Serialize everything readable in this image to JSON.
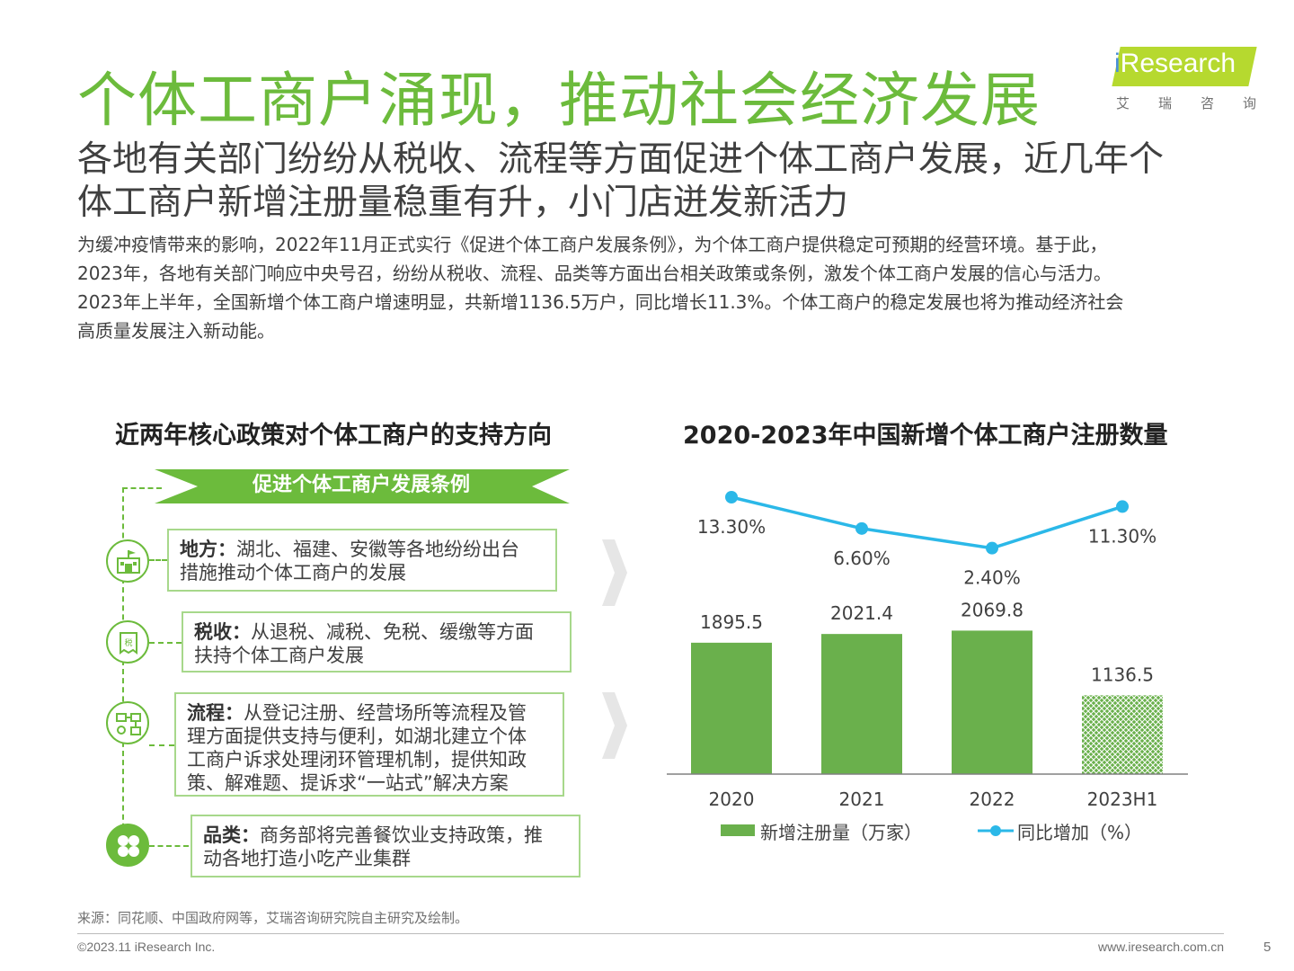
{
  "header": {
    "title": "个体工商户涌现，推动社会经济发展",
    "subtitle_lines": [
      "各地有关部门纷纷从税收、流程等方面促进个体工商户发展，近几年个",
      "体工商户新增注册量稳重有升，小门店迸发新活力"
    ],
    "logo": {
      "brand": "Research",
      "brand_prefix": "i",
      "sub": [
        "艾",
        "瑞",
        "咨",
        "询"
      ],
      "accent": "#b6d92f"
    }
  },
  "body_lines": [
    "为缓冲疫情带来的影响，2022年11月正式实行《促进个体工商户发展条例》，为个体工商户提供稳定可预期的经营环境。基于此，",
    "2023年，各地有关部门响应中央号召，纷纷从税收、流程、品类等方面出台相关政策或条例，激发个体工商户发展的信心与活力。",
    "2023年上半年，全国新增个体工商户增速明显，共新增1136.5万户，同比增长11.3%。个体工商户的稳定发展也将为推动经济社会",
    "高质量发展注入新动能。"
  ],
  "policy": {
    "heading": "近两年核心政策对个体工商户的支持方向",
    "banner": "促进个体工商户发展条例",
    "items": [
      {
        "icon": "government-building-icon",
        "label": "地方：",
        "text_lines": [
          "湖北、福建、安徽等各地纷纷出台",
          "措施推动个体工商户的发展"
        ]
      },
      {
        "icon": "tax-receipt-icon",
        "label": "税收：",
        "text_lines": [
          "从退税、减税、免税、缓缴等方面",
          "扶持个体工商户发展"
        ]
      },
      {
        "icon": "process-flow-icon",
        "label": "流程：",
        "text_lines": [
          "从登记注册、经营场所等流程及管",
          "理方面提供支持与便利，如湖北建立个体",
          "工商户诉求处理闭环管理机制，提供知政",
          "策、解难题、提诉求“一站式”解决方案"
        ]
      },
      {
        "icon": "category-grid-icon",
        "label": "品类：",
        "text_lines": [
          "商务部将完善餐饮业支持政策，推",
          "动各地打造小吃产业集群"
        ]
      }
    ]
  },
  "chart_data": {
    "type": "bar",
    "title": "2020-2023年中国新增个体工商户注册数量",
    "categories": [
      "2020",
      "2021",
      "2022",
      "2023H1"
    ],
    "series": [
      {
        "name": "新增注册量（万家）",
        "type": "bar",
        "values": [
          1895.5,
          2021.4,
          2069.8,
          1136.5
        ],
        "labels": [
          "1895.5",
          "2021.4",
          "2069.8",
          "1136.5"
        ],
        "color": "#6ab04c"
      },
      {
        "name": "同比增加（%）",
        "type": "line",
        "values": [
          13.3,
          6.6,
          2.4,
          11.3
        ],
        "labels": [
          "13.30%",
          "6.60%",
          "2.40%",
          "11.30%"
        ],
        "color": "#2bb8e8"
      }
    ],
    "legend_position": "bottom",
    "grid": false
  },
  "footer": {
    "source": "来源：同花顺、中国政府网等，艾瑞咨询研究院自主研究及绘制。",
    "copyright": "©2023.11 iResearch Inc.",
    "website": "www.iresearch.com.cn",
    "page": "5"
  }
}
